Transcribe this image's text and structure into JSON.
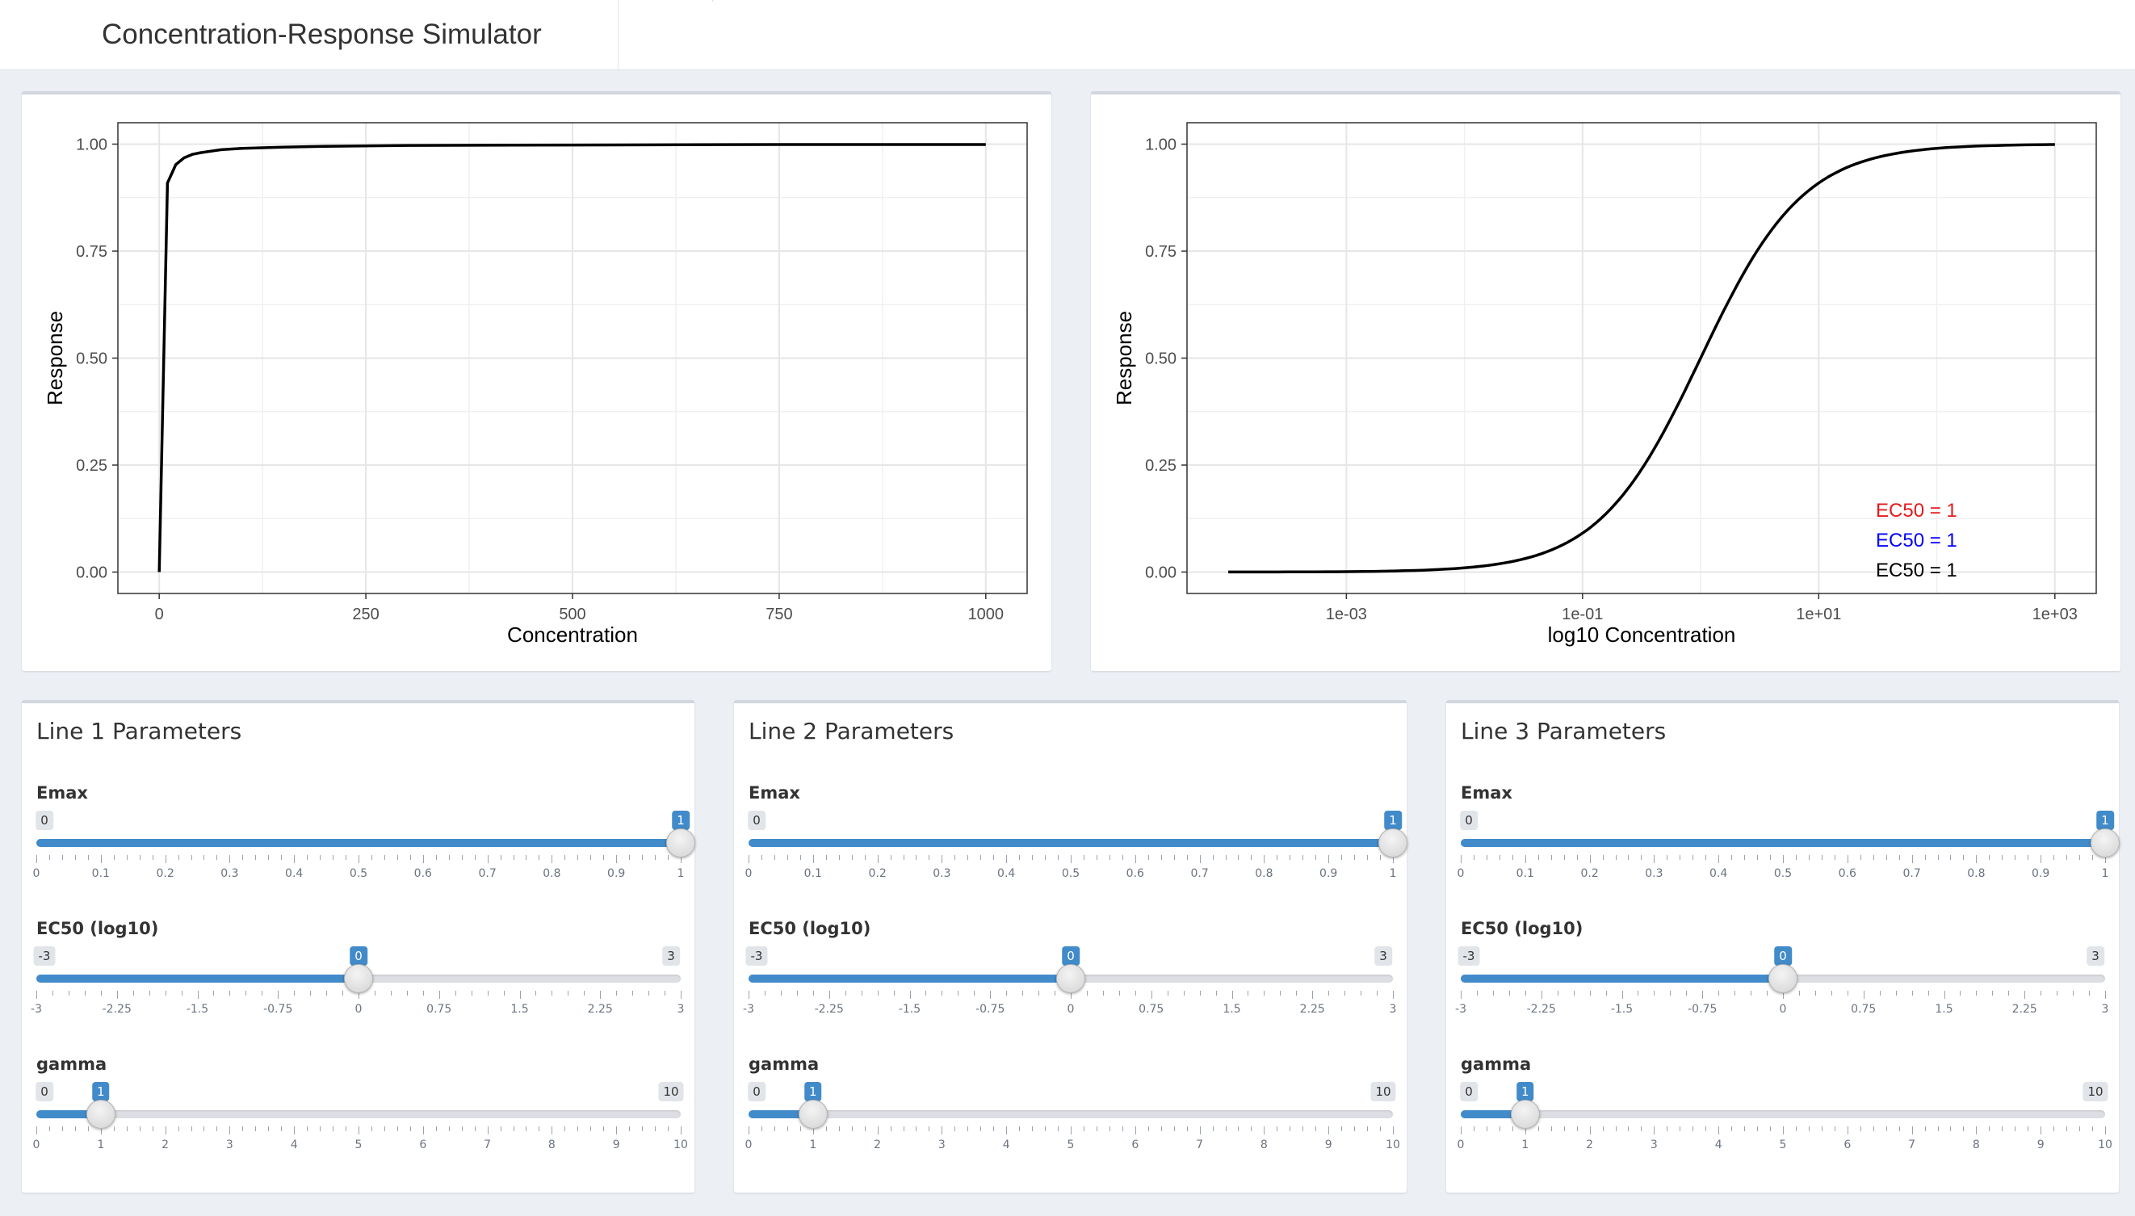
{
  "header": {
    "title": "Concentration-Response Simulator"
  },
  "chart_data": [
    {
      "type": "line",
      "xlabel": "Concentration",
      "ylabel": "Response",
      "x_scale": "linear",
      "xlim": [
        -50,
        1050
      ],
      "ylim": [
        -0.05,
        1.05
      ],
      "x_ticks": [
        0,
        250,
        500,
        750,
        1000
      ],
      "x_tick_labels": [
        "0",
        "250",
        "500",
        "750",
        "1000"
      ],
      "y_ticks": [
        0,
        0.25,
        0.5,
        0.75,
        1.0
      ],
      "y_tick_labels": [
        "0.00",
        "0.25",
        "0.50",
        "0.75",
        "1.00"
      ],
      "grid": true,
      "series": [
        {
          "color": "#000000",
          "x": [
            0,
            10,
            20,
            30,
            40,
            50,
            75,
            100,
            150,
            200,
            300,
            500,
            750,
            1000
          ],
          "y": [
            0.0,
            0.909,
            0.952,
            0.968,
            0.976,
            0.98,
            0.987,
            0.99,
            0.993,
            0.995,
            0.997,
            0.998,
            0.999,
            0.999
          ]
        }
      ]
    },
    {
      "type": "line",
      "xlabel": "log10 Concentration",
      "ylabel": "Response",
      "x_scale": "log10",
      "xlim": [
        4.47e-05,
        2240
      ],
      "ylim": [
        -0.05,
        1.05
      ],
      "x_ticks": [
        0.001,
        0.1,
        10,
        1000
      ],
      "x_tick_labels": [
        "1e-03",
        "1e-01",
        "1e+01",
        "1e+03"
      ],
      "y_ticks": [
        0,
        0.25,
        0.5,
        0.75,
        1.0
      ],
      "y_tick_labels": [
        "0.00",
        "0.25",
        "0.50",
        "0.75",
        "1.00"
      ],
      "grid": true,
      "annotations": [
        {
          "text": "EC50 = 1",
          "color": "#e41a1c"
        },
        {
          "text": "EC50 = 1",
          "color": "#0000ff"
        },
        {
          "text": "EC50 = 1",
          "color": "#000000"
        }
      ],
      "series": [
        {
          "color": "#000000",
          "x": [
            0.0001,
            0.001,
            0.01,
            0.03,
            0.1,
            0.3,
            1,
            3,
            10,
            30,
            100,
            1000
          ],
          "y": [
            0.0001,
            0.001,
            0.0099,
            0.029,
            0.091,
            0.231,
            0.5,
            0.75,
            0.909,
            0.968,
            0.99,
            0.999
          ]
        }
      ]
    }
  ],
  "panels": [
    {
      "title": "Line 1 Parameters",
      "sliders": [
        {
          "label": "Emax",
          "min_label": "0",
          "value_label": "1",
          "min": 0,
          "max": 1,
          "value": 1,
          "ticks": [
            "0",
            "0.1",
            "0.2",
            "0.3",
            "0.4",
            "0.5",
            "0.6",
            "0.7",
            "0.8",
            "0.9",
            "1"
          ]
        },
        {
          "label": "EC50 (log10)",
          "min_label": "-3",
          "max_label": "3",
          "value_label": "0",
          "min": -3,
          "max": 3,
          "value": 0,
          "ticks": [
            "-3",
            "-2.25",
            "-1.5",
            "-0.75",
            "0",
            "0.75",
            "1.5",
            "2.25",
            "3"
          ]
        },
        {
          "label": "gamma",
          "min_label": "0",
          "max_label": "10",
          "value_label": "1",
          "min": 0,
          "max": 10,
          "value": 1,
          "ticks": [
            "0",
            "1",
            "2",
            "3",
            "4",
            "5",
            "6",
            "7",
            "8",
            "9",
            "10"
          ]
        }
      ]
    },
    {
      "title": "Line 2 Parameters",
      "sliders": [
        {
          "label": "Emax",
          "min_label": "0",
          "value_label": "1",
          "min": 0,
          "max": 1,
          "value": 1,
          "ticks": [
            "0",
            "0.1",
            "0.2",
            "0.3",
            "0.4",
            "0.5",
            "0.6",
            "0.7",
            "0.8",
            "0.9",
            "1"
          ]
        },
        {
          "label": "EC50 (log10)",
          "min_label": "-3",
          "max_label": "3",
          "value_label": "0",
          "min": -3,
          "max": 3,
          "value": 0,
          "ticks": [
            "-3",
            "-2.25",
            "-1.5",
            "-0.75",
            "0",
            "0.75",
            "1.5",
            "2.25",
            "3"
          ]
        },
        {
          "label": "gamma",
          "min_label": "0",
          "max_label": "10",
          "value_label": "1",
          "min": 0,
          "max": 10,
          "value": 1,
          "ticks": [
            "0",
            "1",
            "2",
            "3",
            "4",
            "5",
            "6",
            "7",
            "8",
            "9",
            "10"
          ]
        }
      ]
    },
    {
      "title": "Line 3 Parameters",
      "sliders": [
        {
          "label": "Emax",
          "min_label": "0",
          "value_label": "1",
          "min": 0,
          "max": 1,
          "value": 1,
          "ticks": [
            "0",
            "0.1",
            "0.2",
            "0.3",
            "0.4",
            "0.5",
            "0.6",
            "0.7",
            "0.8",
            "0.9",
            "1"
          ]
        },
        {
          "label": "EC50 (log10)",
          "min_label": "-3",
          "max_label": "3",
          "value_label": "0",
          "min": -3,
          "max": 3,
          "value": 0,
          "ticks": [
            "-3",
            "-2.25",
            "-1.5",
            "-0.75",
            "0",
            "0.75",
            "1.5",
            "2.25",
            "3"
          ]
        },
        {
          "label": "gamma",
          "min_label": "0",
          "max_label": "10",
          "value_label": "1",
          "min": 0,
          "max": 10,
          "value": 1,
          "ticks": [
            "0",
            "1",
            "2",
            "3",
            "4",
            "5",
            "6",
            "7",
            "8",
            "9",
            "10"
          ]
        }
      ]
    }
  ]
}
